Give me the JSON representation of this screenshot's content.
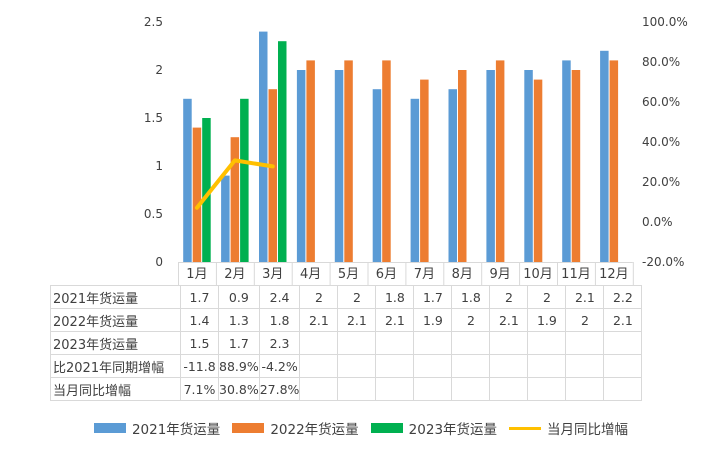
{
  "chart_data": {
    "type": "bar",
    "categories": [
      "1月",
      "2月",
      "3月",
      "4月",
      "5月",
      "6月",
      "7月",
      "8月",
      "9月",
      "10月",
      "11月",
      "12月"
    ],
    "series": [
      {
        "name": "2021年货运量",
        "type": "bar",
        "axis": "left",
        "color": "#5b9bd5",
        "values": [
          1.7,
          0.9,
          2.4,
          2,
          2,
          1.8,
          1.7,
          1.8,
          2,
          2,
          2.1,
          2.2
        ]
      },
      {
        "name": "2022年货运量",
        "type": "bar",
        "axis": "left",
        "color": "#ed7d31",
        "values": [
          1.4,
          1.3,
          1.8,
          2.1,
          2.1,
          2.1,
          1.9,
          2,
          2.1,
          1.9,
          2,
          2.1
        ]
      },
      {
        "name": "2023年货运量",
        "type": "bar",
        "axis": "left",
        "color": "#00b050",
        "values": [
          1.5,
          1.7,
          2.3,
          null,
          null,
          null,
          null,
          null,
          null,
          null,
          null,
          null
        ]
      },
      {
        "name": "当月同比增幅",
        "type": "line",
        "axis": "right",
        "color": "#ffc000",
        "values": [
          7.1,
          30.8,
          27.8,
          null,
          null,
          null,
          null,
          null,
          null,
          null,
          null,
          null
        ]
      }
    ],
    "left_axis": {
      "ylim": [
        0,
        2.5
      ],
      "ticks": [
        "0",
        "0.5",
        "1",
        "1.5",
        "2",
        "2.5"
      ]
    },
    "right_axis": {
      "ylim": [
        -20,
        100
      ],
      "ticks": [
        "-20.0%",
        "0.0%",
        "20.0%",
        "40.0%",
        "60.0%",
        "80.0%",
        "100.0%"
      ]
    },
    "grid": false,
    "legend_position": "bottom",
    "data_table": {
      "row_headers": [
        "2021年货运量",
        "2022年货运量",
        "2023年货运量",
        "比2021年同期增幅",
        "当月同比增幅"
      ],
      "rows": [
        [
          "1.7",
          "0.9",
          "2.4",
          "2",
          "2",
          "1.8",
          "1.7",
          "1.8",
          "2",
          "2",
          "2.1",
          "2.2"
        ],
        [
          "1.4",
          "1.3",
          "1.8",
          "2.1",
          "2.1",
          "2.1",
          "1.9",
          "2",
          "2.1",
          "1.9",
          "2",
          "2.1"
        ],
        [
          "1.5",
          "1.7",
          "2.3",
          "",
          "",
          "",
          "",
          "",
          "",
          "",
          "",
          ""
        ],
        [
          "-11.8",
          "88.9%",
          "-4.2%",
          "",
          "",
          "",
          "",
          "",
          "",
          "",
          "",
          ""
        ],
        [
          "7.1%",
          "30.8%",
          "27.8%",
          "",
          "",
          "",
          "",
          "",
          "",
          "",
          "",
          ""
        ]
      ]
    }
  }
}
